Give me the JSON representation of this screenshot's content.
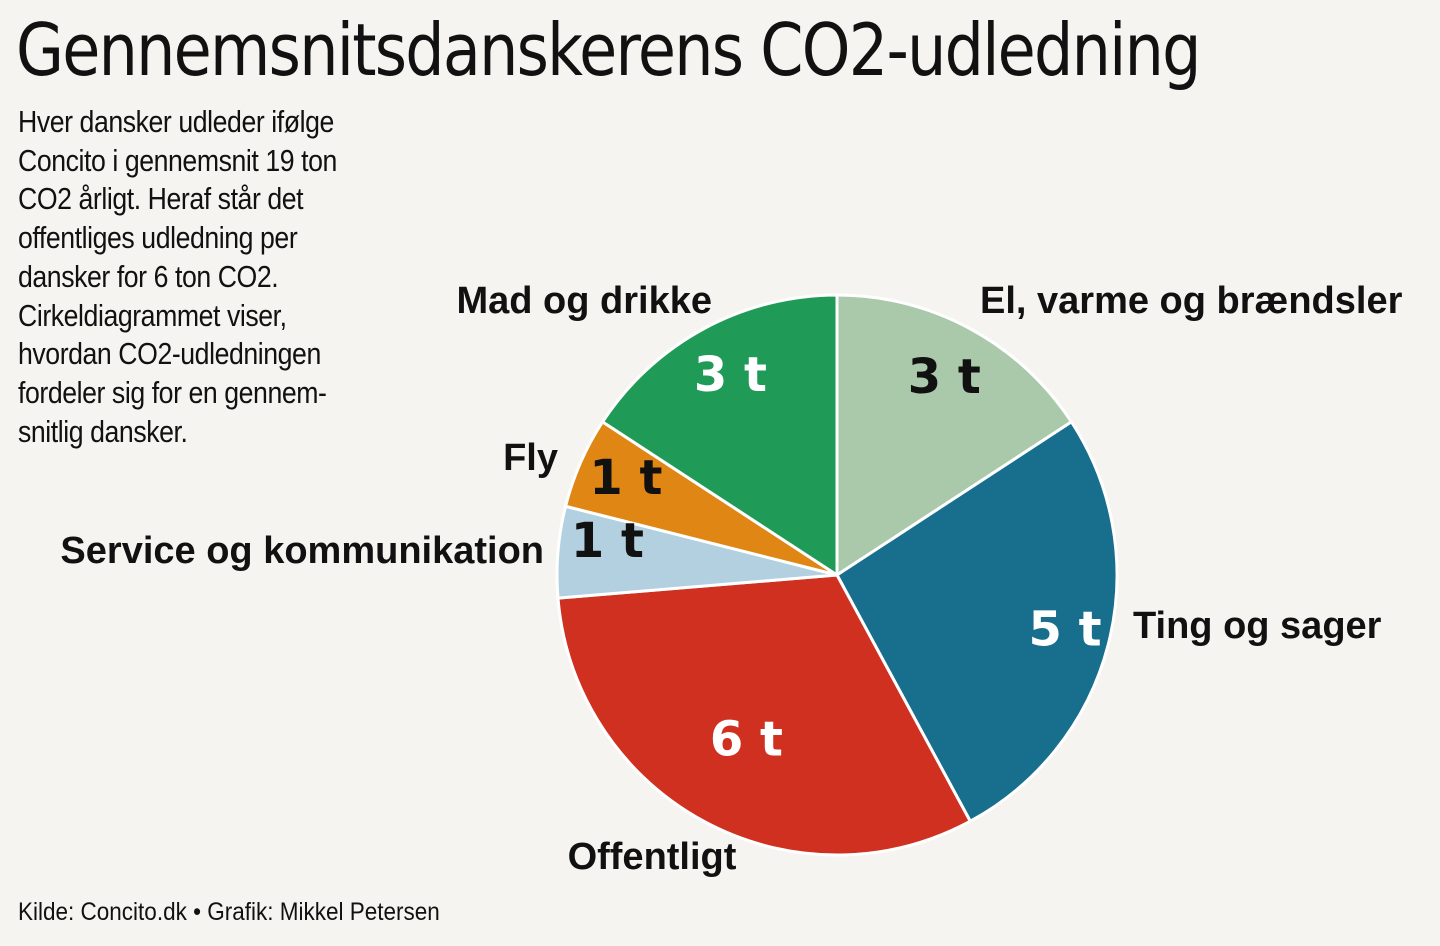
{
  "title": "Gennemsnitsdanskerens CO2-udledning",
  "subtitle_lines": [
    "Hver dansker udleder ifølge",
    "Concito i gennemsnit 19 ton",
    "CO2 årligt. Heraf står det",
    "offentliges udledning per",
    "dansker for 6 ton CO2.",
    "Cirkeldiagrammet viser,",
    "hvordan CO2-udledningen",
    "fordeler sig for en gennem-",
    "snitlig dansker."
  ],
  "source": "Kilde: Concito.dk • Grafik: Mikkel Petersen",
  "chart_data": {
    "type": "pie",
    "unit": "t",
    "slices": [
      {
        "label": "El, varme og brændsler",
        "value": 3,
        "value_label": "3 t",
        "color": "#a9c9aa",
        "text_color": "#111111"
      },
      {
        "label": "Ting og sager",
        "value": 5,
        "value_label": "5 t",
        "color": "#176e8d",
        "text_color": "#ffffff"
      },
      {
        "label": "Offentligt",
        "value": 6,
        "value_label": "6 t",
        "color": "#d0301f",
        "text_color": "#ffffff"
      },
      {
        "label": "Service og kommunikation",
        "value": 1,
        "value_label": "1 t",
        "color": "#b3d0e0",
        "text_color": "#111111"
      },
      {
        "label": "Fly",
        "value": 1,
        "value_label": "1 t",
        "color": "#df8614",
        "text_color": "#111111"
      },
      {
        "label": "Mad og drikke",
        "value": 3,
        "value_label": "3 t",
        "color": "#1f9b57",
        "text_color": "#ffffff"
      }
    ]
  }
}
